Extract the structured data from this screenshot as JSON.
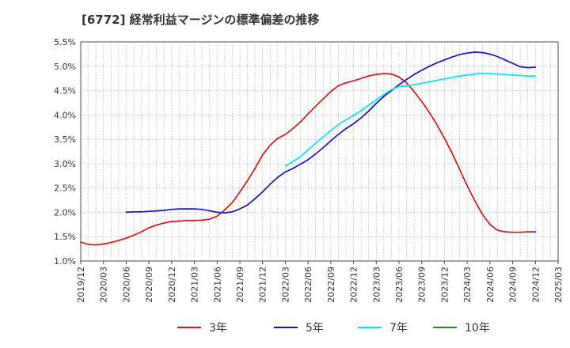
{
  "chart_data": {
    "type": "line",
    "title": "[6772]  経常利益マージンの標準偏差の推移",
    "xlabel": "",
    "ylabel": "",
    "ylim": [
      1.0,
      5.5
    ],
    "y_ticks": [
      "1.0%",
      "1.5%",
      "2.0%",
      "2.5%",
      "3.0%",
      "3.5%",
      "4.0%",
      "4.5%",
      "5.0%",
      "5.5%"
    ],
    "x_ticks": [
      "2019/12",
      "2020/03",
      "2020/06",
      "2020/09",
      "2020/12",
      "2021/03",
      "2021/06",
      "2021/09",
      "2021/12",
      "2022/03",
      "2022/06",
      "2022/09",
      "2022/12",
      "2023/03",
      "2023/06",
      "2023/09",
      "2023/12",
      "2024/03",
      "2024/06",
      "2024/09",
      "2024/12",
      "2025/03"
    ],
    "grid": true,
    "legend_position": "bottom",
    "series": [
      {
        "name": "3年",
        "color": "#dd1111",
        "x": [
          "2019/12",
          "2020/01",
          "2020/02",
          "2020/03",
          "2020/04",
          "2020/05",
          "2020/06",
          "2020/07",
          "2020/08",
          "2020/09",
          "2020/10",
          "2020/11",
          "2020/12",
          "2021/01",
          "2021/02",
          "2021/03",
          "2021/04",
          "2021/05",
          "2021/06",
          "2021/07",
          "2021/08",
          "2021/09",
          "2021/10",
          "2021/11",
          "2021/12",
          "2022/01",
          "2022/02",
          "2022/03",
          "2022/04",
          "2022/05",
          "2022/06",
          "2022/07",
          "2022/08",
          "2022/09",
          "2022/10",
          "2022/11",
          "2022/12",
          "2023/01",
          "2023/02",
          "2023/03",
          "2023/04",
          "2023/05",
          "2023/06",
          "2023/07",
          "2023/08",
          "2023/09",
          "2023/10",
          "2023/11",
          "2023/12",
          "2024/01",
          "2024/02",
          "2024/03",
          "2024/04",
          "2024/05",
          "2024/06",
          "2024/07",
          "2024/08",
          "2024/09",
          "2024/10",
          "2024/11",
          "2024/12"
        ],
        "values": [
          1.39,
          1.34,
          1.33,
          1.35,
          1.38,
          1.42,
          1.47,
          1.53,
          1.6,
          1.68,
          1.74,
          1.78,
          1.81,
          1.82,
          1.83,
          1.83,
          1.84,
          1.86,
          1.92,
          2.05,
          2.2,
          2.42,
          2.65,
          2.9,
          3.18,
          3.38,
          3.52,
          3.6,
          3.72,
          3.86,
          4.02,
          4.18,
          4.33,
          4.48,
          4.6,
          4.66,
          4.7,
          4.75,
          4.8,
          4.83,
          4.85,
          4.84,
          4.78,
          4.66,
          4.48,
          4.28,
          4.05,
          3.8,
          3.52,
          3.22,
          2.88,
          2.55,
          2.24,
          1.96,
          1.75,
          1.63,
          1.6,
          1.59,
          1.59,
          1.6,
          1.6
        ]
      },
      {
        "name": "5年",
        "color": "#1111cc",
        "x": [
          "2020/06",
          "2020/07",
          "2020/08",
          "2020/09",
          "2020/10",
          "2020/11",
          "2020/12",
          "2021/01",
          "2021/02",
          "2021/03",
          "2021/04",
          "2021/05",
          "2021/06",
          "2021/07",
          "2021/08",
          "2021/09",
          "2021/10",
          "2021/11",
          "2021/12",
          "2022/01",
          "2022/02",
          "2022/03",
          "2022/04",
          "2022/05",
          "2022/06",
          "2022/07",
          "2022/08",
          "2022/09",
          "2022/10",
          "2022/11",
          "2022/12",
          "2023/01",
          "2023/02",
          "2023/03",
          "2023/04",
          "2023/05",
          "2023/06",
          "2023/07",
          "2023/08",
          "2023/09",
          "2023/10",
          "2023/11",
          "2023/12",
          "2024/01",
          "2024/02",
          "2024/03",
          "2024/04",
          "2024/05",
          "2024/06",
          "2024/07",
          "2024/08",
          "2024/09",
          "2024/10",
          "2024/11",
          "2024/12"
        ],
        "values": [
          2.0,
          2.01,
          2.01,
          2.02,
          2.03,
          2.04,
          2.06,
          2.07,
          2.07,
          2.07,
          2.06,
          2.03,
          2.0,
          1.99,
          2.01,
          2.07,
          2.15,
          2.28,
          2.42,
          2.58,
          2.72,
          2.83,
          2.9,
          2.99,
          3.08,
          3.2,
          3.33,
          3.47,
          3.6,
          3.72,
          3.82,
          3.94,
          4.08,
          4.24,
          4.38,
          4.5,
          4.62,
          4.73,
          4.83,
          4.92,
          5.0,
          5.07,
          5.13,
          5.19,
          5.24,
          5.27,
          5.29,
          5.28,
          5.25,
          5.2,
          5.13,
          5.06,
          4.99,
          4.97,
          4.98
        ]
      },
      {
        "name": "7年",
        "color": "#00e5ee",
        "x": [
          "2022/03",
          "2022/04",
          "2022/05",
          "2022/06",
          "2022/07",
          "2022/08",
          "2022/09",
          "2022/10",
          "2022/11",
          "2022/12",
          "2023/01",
          "2023/02",
          "2023/03",
          "2023/04",
          "2023/05",
          "2023/06",
          "2023/07",
          "2023/08",
          "2023/09",
          "2023/10",
          "2023/11",
          "2023/12",
          "2024/01",
          "2024/02",
          "2024/03",
          "2024/04",
          "2024/05",
          "2024/06",
          "2024/07",
          "2024/08",
          "2024/09",
          "2024/10",
          "2024/11",
          "2024/12"
        ],
        "values": [
          2.95,
          3.04,
          3.15,
          3.28,
          3.42,
          3.55,
          3.68,
          3.8,
          3.9,
          3.99,
          4.09,
          4.2,
          4.31,
          4.42,
          4.52,
          4.58,
          4.6,
          4.62,
          4.65,
          4.68,
          4.71,
          4.74,
          4.77,
          4.8,
          4.82,
          4.84,
          4.85,
          4.85,
          4.84,
          4.83,
          4.82,
          4.81,
          4.8,
          4.8
        ]
      },
      {
        "name": "10年",
        "color": "#228b22",
        "x": [],
        "values": []
      }
    ]
  }
}
